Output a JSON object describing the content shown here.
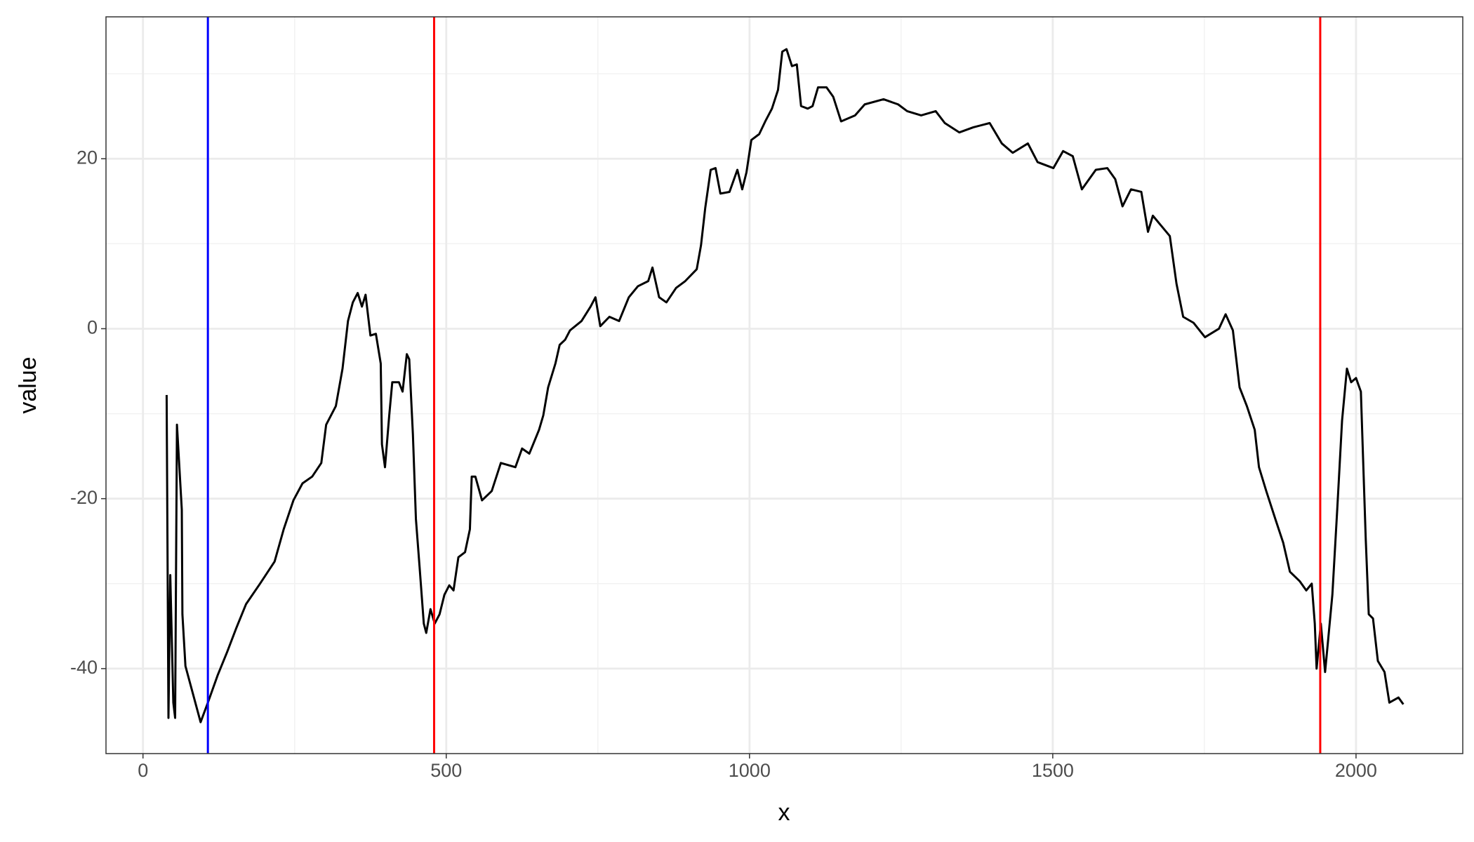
{
  "chart_data": {
    "type": "line",
    "x_label": "x",
    "y_label": "value",
    "x": [
      39,
      42,
      45,
      50,
      53,
      56,
      64,
      65,
      70,
      95,
      107,
      123,
      139,
      154,
      170,
      193,
      217,
      232,
      248,
      263,
      279,
      294,
      302,
      318,
      329,
      338,
      346,
      354,
      361,
      367,
      375,
      384,
      392,
      394,
      399,
      406,
      411,
      422,
      428,
      435,
      439,
      445,
      450,
      456,
      463,
      467,
      474,
      481,
      489,
      497,
      505,
      512,
      520,
      531,
      539,
      542,
      548,
      559,
      575,
      590,
      614,
      625,
      637,
      653,
      660,
      668,
      680,
      687,
      696,
      704,
      723,
      738,
      746,
      754,
      769,
      785,
      801,
      816,
      833,
      840,
      851,
      863,
      879,
      894,
      913,
      920,
      927,
      936,
      944,
      952,
      967,
      980,
      988,
      995,
      1003,
      1016,
      1026,
      1037,
      1047,
      1054,
      1061,
      1070,
      1078,
      1085,
      1096,
      1104,
      1113,
      1127,
      1138,
      1151,
      1174,
      1190,
      1221,
      1245,
      1260,
      1283,
      1307,
      1322,
      1346,
      1369,
      1396,
      1416,
      1434,
      1459,
      1475,
      1501,
      1517,
      1533,
      1548,
      1571,
      1590,
      1603,
      1615,
      1629,
      1646,
      1657,
      1665,
      1693,
      1704,
      1715,
      1732,
      1751,
      1774,
      1785,
      1797,
      1808,
      1820,
      1833,
      1840,
      1852,
      1867,
      1880,
      1891,
      1907,
      1918,
      1927,
      1932,
      1935,
      1942,
      1949,
      1953,
      1961,
      1969,
      1977,
      1985,
      1992,
      2000,
      2008,
      2016,
      2021,
      2028,
      2036,
      2047,
      2055,
      2070,
      2078
    ],
    "values": [
      -7.8,
      -45.8,
      -29,
      -44,
      -45.8,
      -11.3,
      -21.3,
      -33.6,
      -39.7,
      -46.3,
      -44,
      -40.8,
      -38,
      -35.2,
      -32.4,
      -30,
      -27.4,
      -23.6,
      -20.2,
      -18.2,
      -17.4,
      -15.8,
      -11.3,
      -9.1,
      -4.7,
      0.9,
      3.1,
      4.2,
      2.6,
      4,
      -0.8,
      -0.6,
      -4.1,
      -13.6,
      -16.3,
      -10.2,
      -6.3,
      -6.3,
      -7.4,
      -3,
      -3.6,
      -12.4,
      -22.4,
      -28,
      -34.7,
      -35.8,
      -33,
      -34.7,
      -33.6,
      -31.3,
      -30.2,
      -30.8,
      -26.9,
      -26.3,
      -23.6,
      -17.4,
      -17.4,
      -20.2,
      -19.1,
      -15.8,
      -16.3,
      -14.1,
      -14.7,
      -11.9,
      -10.2,
      -6.9,
      -4.1,
      -1.9,
      -1.3,
      -0.2,
      0.9,
      2.6,
      3.7,
      0.3,
      1.4,
      0.9,
      3.7,
      5,
      5.6,
      7.2,
      3.7,
      3.1,
      4.8,
      5.6,
      7,
      9.8,
      14.2,
      18.7,
      18.9,
      15.9,
      16.1,
      18.7,
      16.4,
      18.4,
      22.2,
      22.9,
      24.4,
      25.9,
      28.1,
      32.6,
      32.9,
      30.9,
      31.1,
      26.2,
      25.9,
      26.2,
      28.4,
      28.4,
      27.3,
      24.4,
      25.1,
      26.4,
      27,
      26.4,
      25.6,
      25.1,
      25.6,
      24.2,
      23.1,
      23.7,
      24.2,
      21.8,
      20.7,
      21.8,
      19.6,
      18.9,
      20.9,
      20.3,
      16.4,
      18.7,
      18.9,
      17.6,
      14.4,
      16.4,
      16.1,
      11.4,
      13.3,
      10.9,
      5.3,
      1.4,
      0.7,
      -1,
      0,
      1.7,
      -0.2,
      -6.9,
      -9.1,
      -11.9,
      -16.3,
      -19.1,
      -22.4,
      -25.2,
      -28.6,
      -29.7,
      -30.8,
      -30,
      -34.7,
      -40,
      -34.7,
      -40.4,
      -37.4,
      -31.3,
      -21.3,
      -10.8,
      -4.7,
      -6.3,
      -5.8,
      -7.4,
      -24.7,
      -33.6,
      -34.1,
      -39.1,
      -40.4,
      -44,
      -43.4,
      -44.2
    ],
    "color": "#000000",
    "vlines": [
      {
        "x": 107,
        "color": "#0000ff"
      },
      {
        "x": 480,
        "color": "#ff0000"
      },
      {
        "x": 1941,
        "color": "#ff0000"
      }
    ],
    "xlim": [
      -61,
      2176
    ],
    "ylim": [
      -50,
      36.7
    ],
    "xticks": [
      0,
      500,
      1000,
      1500,
      2000
    ],
    "yticks": [
      -40,
      -20,
      0,
      20
    ],
    "x_minor_grid": [
      250,
      750,
      1250,
      1750
    ],
    "y_minor_grid": [
      -30,
      -10,
      10,
      30
    ],
    "grid": true
  }
}
